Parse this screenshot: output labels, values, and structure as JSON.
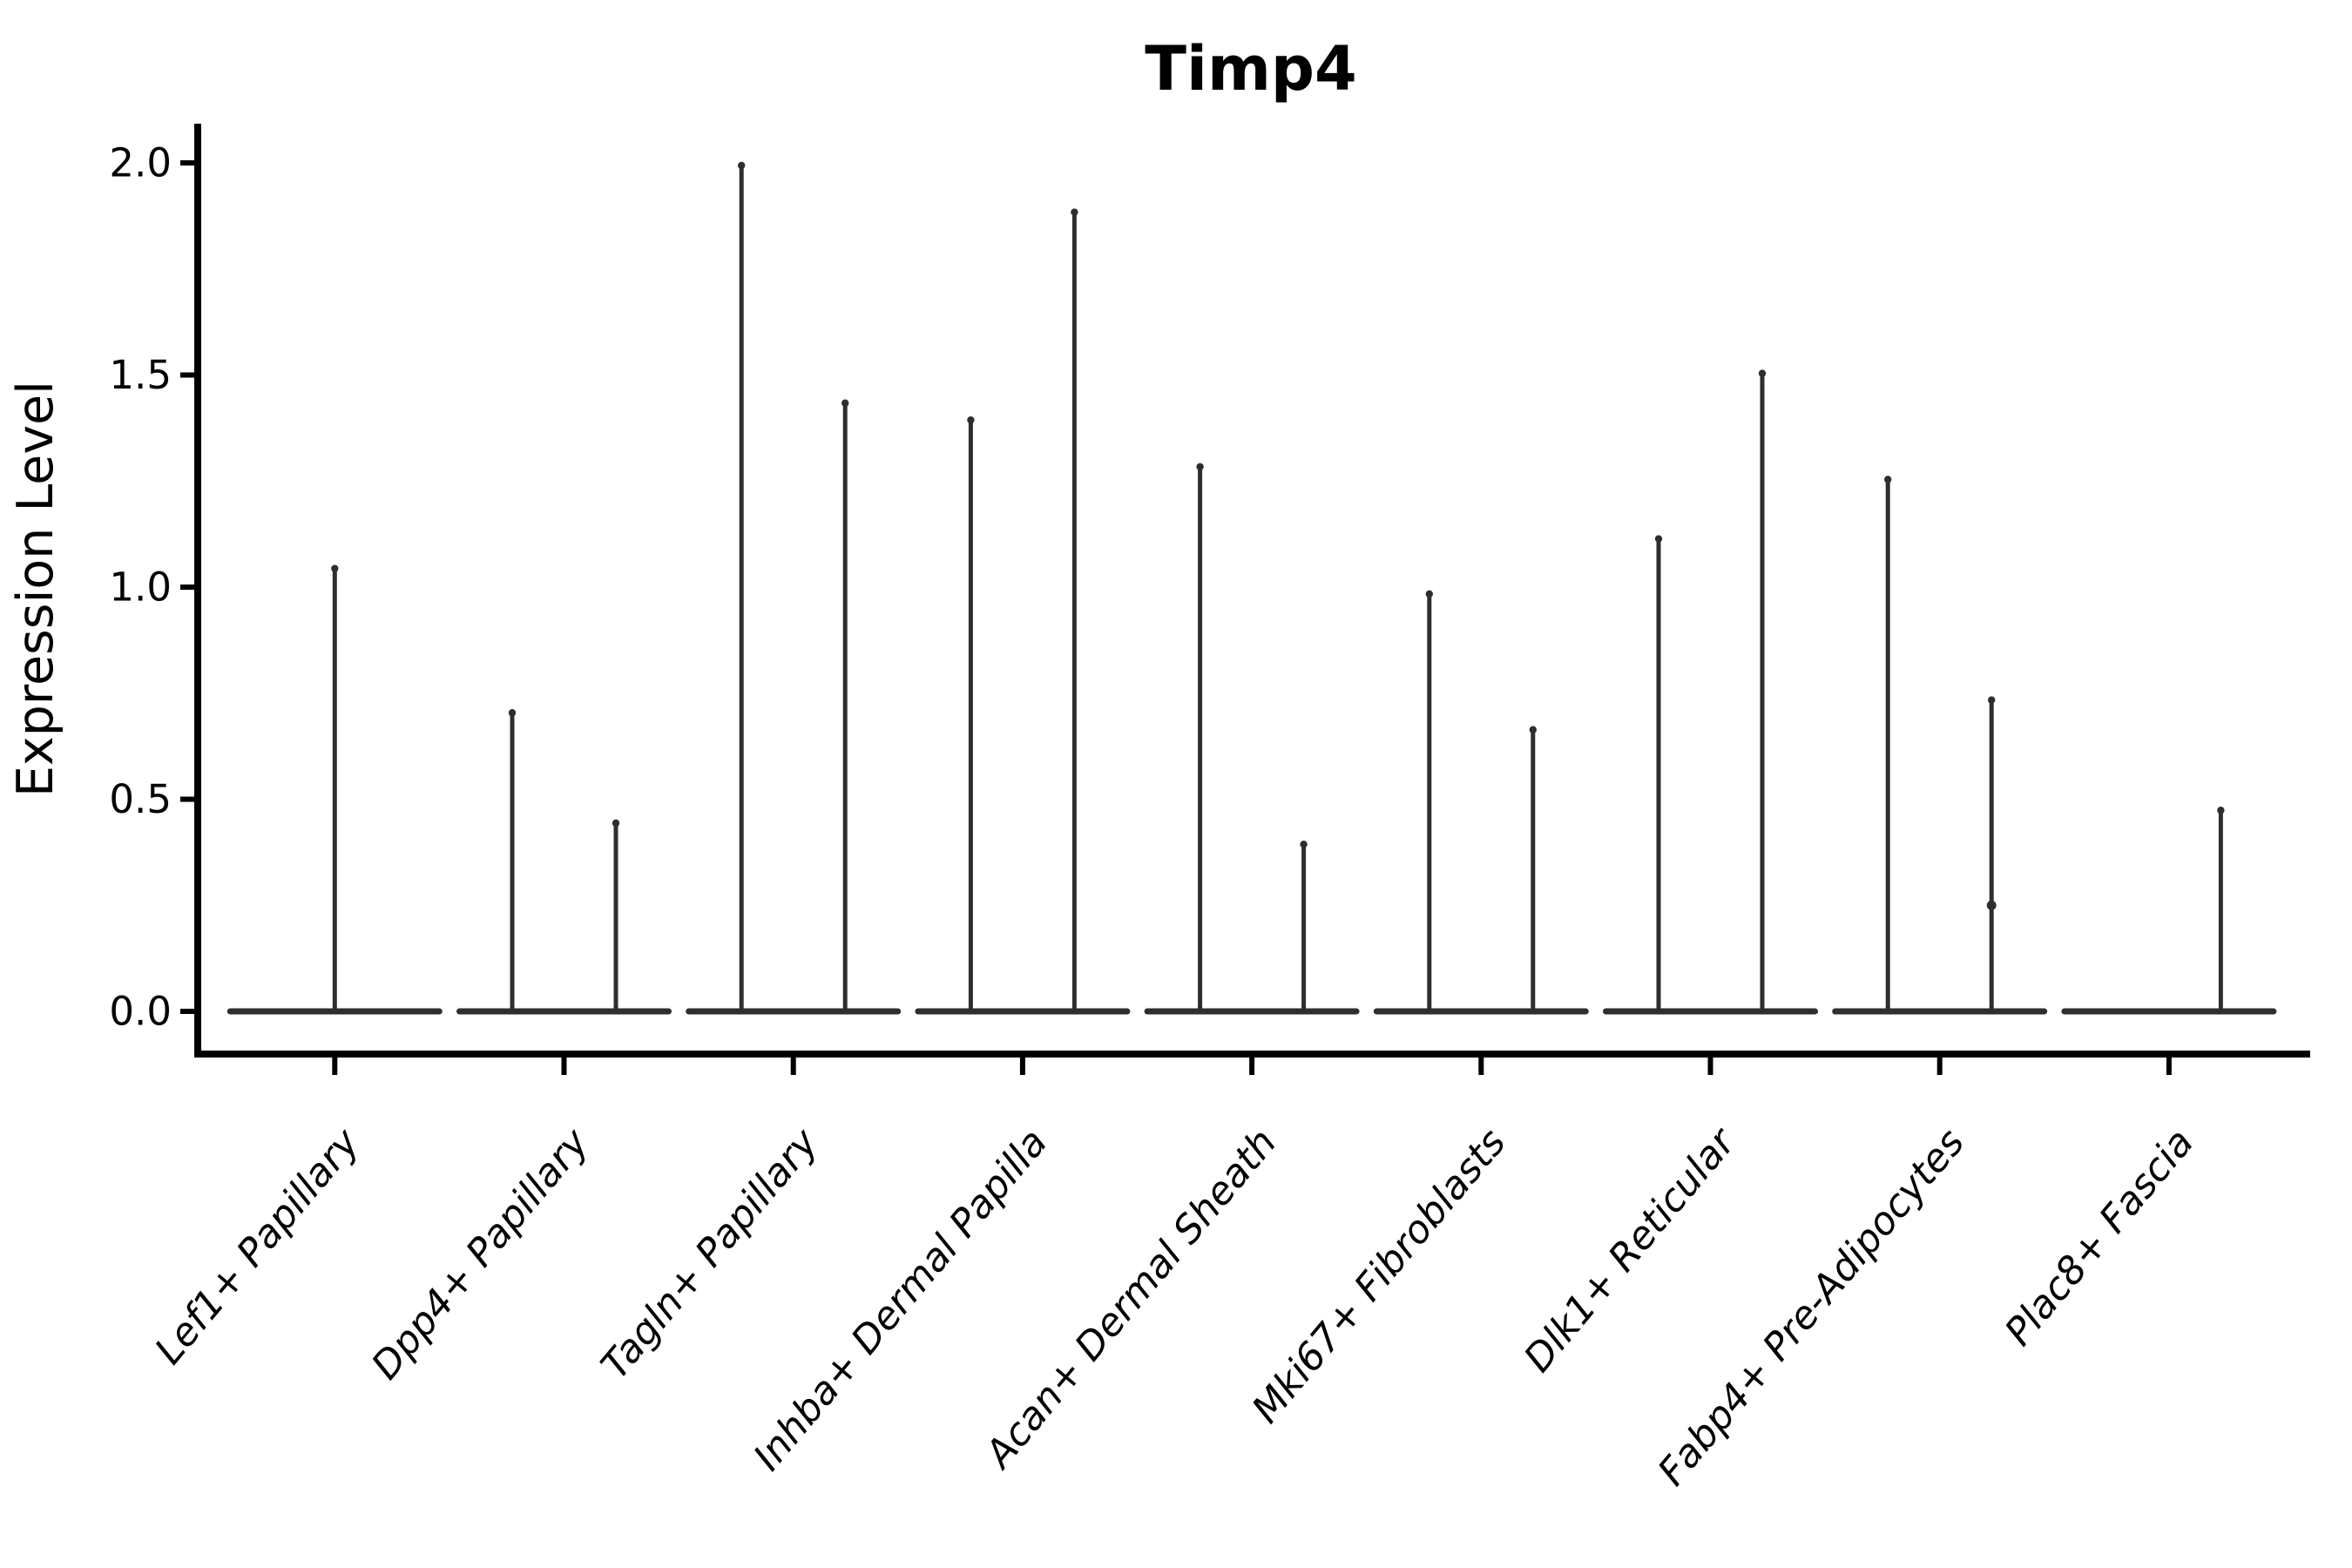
{
  "title": "Timp4",
  "y_axis": {
    "label": "Expression Level",
    "ticks": [
      "0.0",
      "0.5",
      "1.0",
      "1.5",
      "2.0"
    ]
  },
  "x_axis": {
    "categories": [
      "Lef1+ Papillary",
      "Dpp4+ Papillary",
      "Tagln+ Papillary",
      "Inhba+ Dermal Papilla",
      "Acan+ Dermal Sheath",
      "Mki67+ Fibroblasts",
      "Dlk1+ Reticular",
      "Fabp4+ Pre-Adipocytes",
      "Plac8+ Fascia"
    ]
  },
  "colors": {
    "violin": "#2e2e2e",
    "axis": "#000000",
    "background": "#ffffff"
  },
  "chart_data": {
    "type": "violin",
    "title": "Timp4",
    "xlabel": "",
    "ylabel": "Expression Level",
    "ylim": [
      0,
      2.05
    ],
    "yticks": [
      0.0,
      0.5,
      1.0,
      1.5,
      2.0
    ],
    "grid": false,
    "legend": "none",
    "style": "collapsed violins: density mass at 0 (flat horizontal base line per category) with a thin vertical spike reaching the maximum expression value; two violins per category where two groups are present",
    "categories": [
      "Lef1+ Papillary",
      "Dpp4+ Papillary",
      "Tagln+ Papillary",
      "Inhba+ Dermal Papilla",
      "Acan+ Dermal Sheath",
      "Mki67+ Fibroblasts",
      "Dlk1+ Reticular",
      "Fabp4+ Pre-Adipocytes",
      "Plac8+ Fascia"
    ],
    "series": [
      {
        "name": "violin-left",
        "max_values": [
          1.05,
          0.71,
          2.0,
          1.4,
          1.29,
          0.99,
          1.12,
          1.26,
          0.0
        ]
      },
      {
        "name": "violin-right",
        "max_values": [
          null,
          0.45,
          1.44,
          1.89,
          0.4,
          0.67,
          1.51,
          0.74,
          0.48
        ]
      }
    ],
    "outlier_points": [
      {
        "category": "Fabp4+ Pre-Adipocytes",
        "series": 1,
        "value": 0.25
      }
    ]
  }
}
